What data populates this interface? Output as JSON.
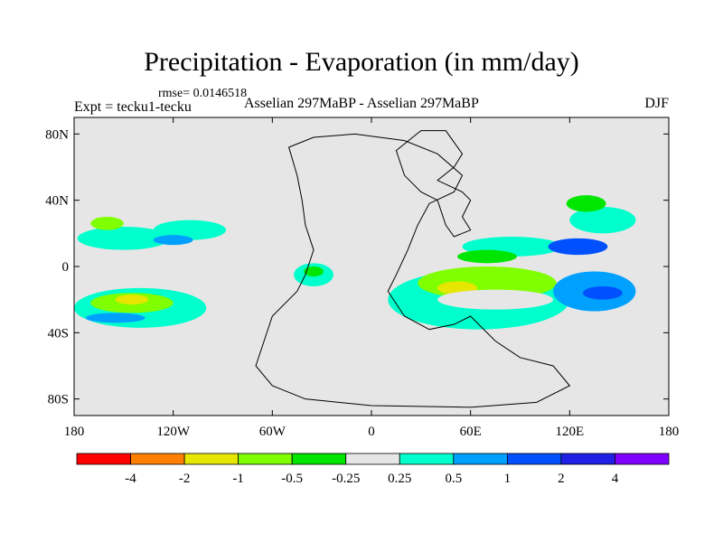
{
  "chart_data": {
    "type": "heatmap",
    "title": "Precipitation - Evaporation (in mm/day)",
    "subtitle_left": "Expt = tecku1-tecku",
    "subtitle_center": "Asselian 297MaBP - Asselian 297MaBP",
    "subtitle_right": "DJF",
    "annotation": "rmse= 0.0146518",
    "x_ticks": [
      "180",
      "120W",
      "60W",
      "0",
      "60E",
      "120E",
      "180"
    ],
    "x_tick_values": [
      -180,
      -120,
      -60,
      0,
      60,
      120,
      180
    ],
    "y_ticks": [
      "80N",
      "40N",
      "0",
      "40S",
      "80S"
    ],
    "y_tick_values": [
      80,
      40,
      0,
      -40,
      -80
    ],
    "xlim": [
      -180,
      180
    ],
    "ylim": [
      -90,
      90
    ],
    "colorbar": {
      "colors": [
        "#ff0000",
        "#ff8000",
        "#e6e600",
        "#80ff00",
        "#00e600",
        "#e6e6e6",
        "#00ffcc",
        "#00a0ff",
        "#0050ff",
        "#2020e6",
        "#8000ff"
      ],
      "labels": [
        "-4",
        "-2",
        "-1",
        "-0.5",
        "-0.25",
        "0.25",
        "0.5",
        "1",
        "2",
        "4"
      ]
    },
    "background_color": "#e6e6e6",
    "regions": [
      {
        "name": "pacific-north-band",
        "lon": -150,
        "lat": 17,
        "rx": 28,
        "ry": 7,
        "color": "#00ffcc"
      },
      {
        "name": "pacific-north-band-b",
        "lon": -110,
        "lat": 22,
        "rx": 22,
        "ry": 6,
        "color": "#00ffcc"
      },
      {
        "name": "pacific-north-green",
        "lon": -160,
        "lat": 26,
        "rx": 10,
        "ry": 4,
        "color": "#80ff00"
      },
      {
        "name": "pacific-north-blue",
        "lon": -120,
        "lat": 16,
        "rx": 12,
        "ry": 3,
        "color": "#00a0ff"
      },
      {
        "name": "pacific-south-band",
        "lon": -140,
        "lat": -25,
        "rx": 40,
        "ry": 12,
        "color": "#00ffcc"
      },
      {
        "name": "pacific-south-green",
        "lon": -145,
        "lat": -22,
        "rx": 25,
        "ry": 6,
        "color": "#80ff00"
      },
      {
        "name": "pacific-south-yellow",
        "lon": -145,
        "lat": -20,
        "rx": 10,
        "ry": 3,
        "color": "#e6e600"
      },
      {
        "name": "pacific-south-blue",
        "lon": -155,
        "lat": -31,
        "rx": 18,
        "ry": 3,
        "color": "#00a0ff"
      },
      {
        "name": "tethys-west-cyan",
        "lon": -35,
        "lat": -5,
        "rx": 12,
        "ry": 7,
        "color": "#00ffcc"
      },
      {
        "name": "tethys-west-green",
        "lon": -35,
        "lat": -3,
        "rx": 6,
        "ry": 3,
        "color": "#00e600"
      },
      {
        "name": "gondwana-cyan",
        "lon": 65,
        "lat": -20,
        "rx": 55,
        "ry": 18,
        "color": "#00ffcc"
      },
      {
        "name": "gondwana-green",
        "lon": 70,
        "lat": -10,
        "rx": 42,
        "ry": 10,
        "color": "#80ff00"
      },
      {
        "name": "gondwana-yellow",
        "lon": 52,
        "lat": -13,
        "rx": 12,
        "ry": 4,
        "color": "#e6e600"
      },
      {
        "name": "gondwana-grey-core",
        "lon": 75,
        "lat": -20,
        "rx": 35,
        "ry": 6,
        "color": "#e6e6e6"
      },
      {
        "name": "eastern-tethys-blue",
        "lon": 135,
        "lat": -15,
        "rx": 25,
        "ry": 12,
        "color": "#00a0ff"
      },
      {
        "name": "eastern-tethys-deep",
        "lon": 140,
        "lat": -16,
        "rx": 12,
        "ry": 4,
        "color": "#0050ff"
      },
      {
        "name": "north-pangea-cyan",
        "lon": 85,
        "lat": 12,
        "rx": 30,
        "ry": 6,
        "color": "#00ffcc"
      },
      {
        "name": "north-pangea-green",
        "lon": 70,
        "lat": 6,
        "rx": 18,
        "ry": 4,
        "color": "#00e600"
      },
      {
        "name": "north-east-blue",
        "lon": 125,
        "lat": 12,
        "rx": 18,
        "ry": 5,
        "color": "#0050ff"
      },
      {
        "name": "north-east-cyan",
        "lon": 140,
        "lat": 28,
        "rx": 20,
        "ry": 8,
        "color": "#00ffcc"
      },
      {
        "name": "north-east-green",
        "lon": 130,
        "lat": 38,
        "rx": 12,
        "ry": 5,
        "color": "#00e600"
      }
    ],
    "coastlines": [
      {
        "name": "pangea",
        "points": [
          [
            -50,
            72
          ],
          [
            -35,
            78
          ],
          [
            -10,
            80
          ],
          [
            20,
            76
          ],
          [
            40,
            68
          ],
          [
            55,
            55
          ],
          [
            50,
            45
          ],
          [
            35,
            38
          ],
          [
            28,
            25
          ],
          [
            22,
            10
          ],
          [
            15,
            -5
          ],
          [
            10,
            -15
          ],
          [
            20,
            -30
          ],
          [
            35,
            -38
          ],
          [
            50,
            -35
          ],
          [
            60,
            -30
          ],
          [
            75,
            -45
          ],
          [
            90,
            -55
          ],
          [
            110,
            -60
          ],
          [
            120,
            -72
          ],
          [
            100,
            -82
          ],
          [
            60,
            -85
          ],
          [
            0,
            -84
          ],
          [
            -40,
            -80
          ],
          [
            -60,
            -72
          ],
          [
            -70,
            -60
          ],
          [
            -65,
            -45
          ],
          [
            -60,
            -30
          ],
          [
            -45,
            -15
          ],
          [
            -40,
            -5
          ],
          [
            -35,
            10
          ],
          [
            -40,
            25
          ],
          [
            -42,
            40
          ],
          [
            -45,
            55
          ],
          [
            -50,
            72
          ]
        ]
      },
      {
        "name": "north-landmass",
        "points": [
          [
            15,
            70
          ],
          [
            30,
            82
          ],
          [
            45,
            82
          ],
          [
            55,
            68
          ],
          [
            50,
            60
          ],
          [
            40,
            52
          ],
          [
            55,
            45
          ],
          [
            60,
            40
          ],
          [
            55,
            30
          ],
          [
            60,
            22
          ],
          [
            50,
            18
          ],
          [
            45,
            25
          ],
          [
            40,
            40
          ],
          [
            30,
            45
          ],
          [
            20,
            55
          ],
          [
            15,
            70
          ]
        ]
      }
    ]
  }
}
